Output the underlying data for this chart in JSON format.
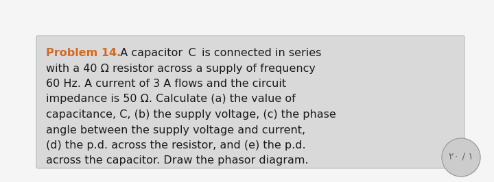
{
  "page_bg": "#f5f5f5",
  "box_bg": "#d9d9d9",
  "box_edge": "#aaaaaa",
  "title": "Problem 14.",
  "title_color": "#d4691e",
  "title_fontsize": 11.5,
  "body_fontsize": 11.5,
  "body_color": "#1a1a1a",
  "line1_suffix": "  A capacitor  C  is connected in series",
  "lines": [
    "with a 40 Ω resistor across a supply of frequency",
    "60 Hz. A current of 3 A flows and the circuit",
    "impedance is 50 Ω. Calculate (a) the value of",
    "capacitance, C, (b) the supply voltage, (c) the phase",
    "angle between the supply voltage and current,",
    "(d) the p.d. across the resistor, and (e) the p.d.",
    "across the capacitor. Draw the phasor diagram."
  ],
  "stamp_text": "۲۰ / ١",
  "stamp_fontsize": 10,
  "stamp_color": "#666666",
  "stamp_bg": "#cccccc"
}
